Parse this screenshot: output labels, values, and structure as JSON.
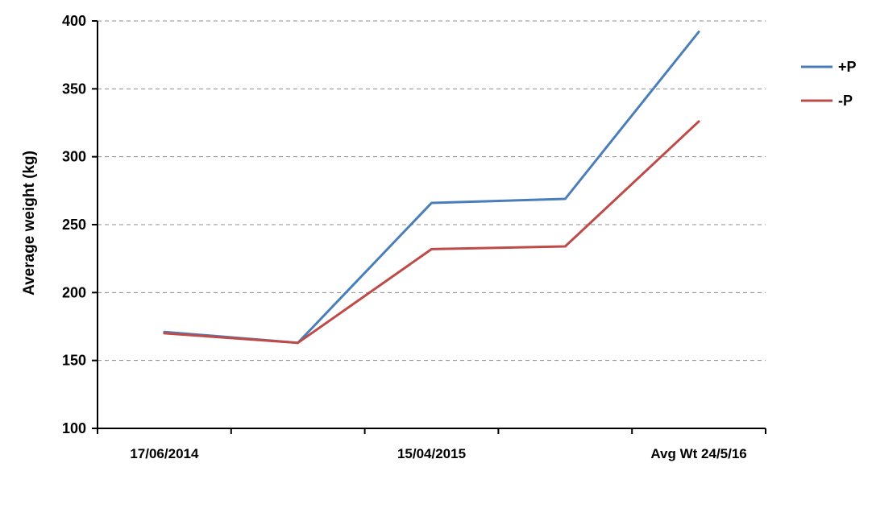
{
  "chart_data": {
    "type": "line",
    "title": "",
    "xlabel": "",
    "ylabel": "Average weight (kg)",
    "ylim": [
      100,
      400
    ],
    "yticks": [
      100,
      150,
      200,
      250,
      300,
      350,
      400
    ],
    "categories": [
      "17/06/2014",
      "",
      "15/04/2015",
      "",
      "Avg Wt 24/5/16"
    ],
    "grid": true,
    "legend_position": "right",
    "series": [
      {
        "name": "+P",
        "color": "#4a7ebb",
        "values": [
          171,
          163,
          266,
          269,
          392
        ]
      },
      {
        "name": "-P",
        "color": "#be4b48",
        "values": [
          170,
          163,
          232,
          234,
          326
        ]
      }
    ]
  }
}
